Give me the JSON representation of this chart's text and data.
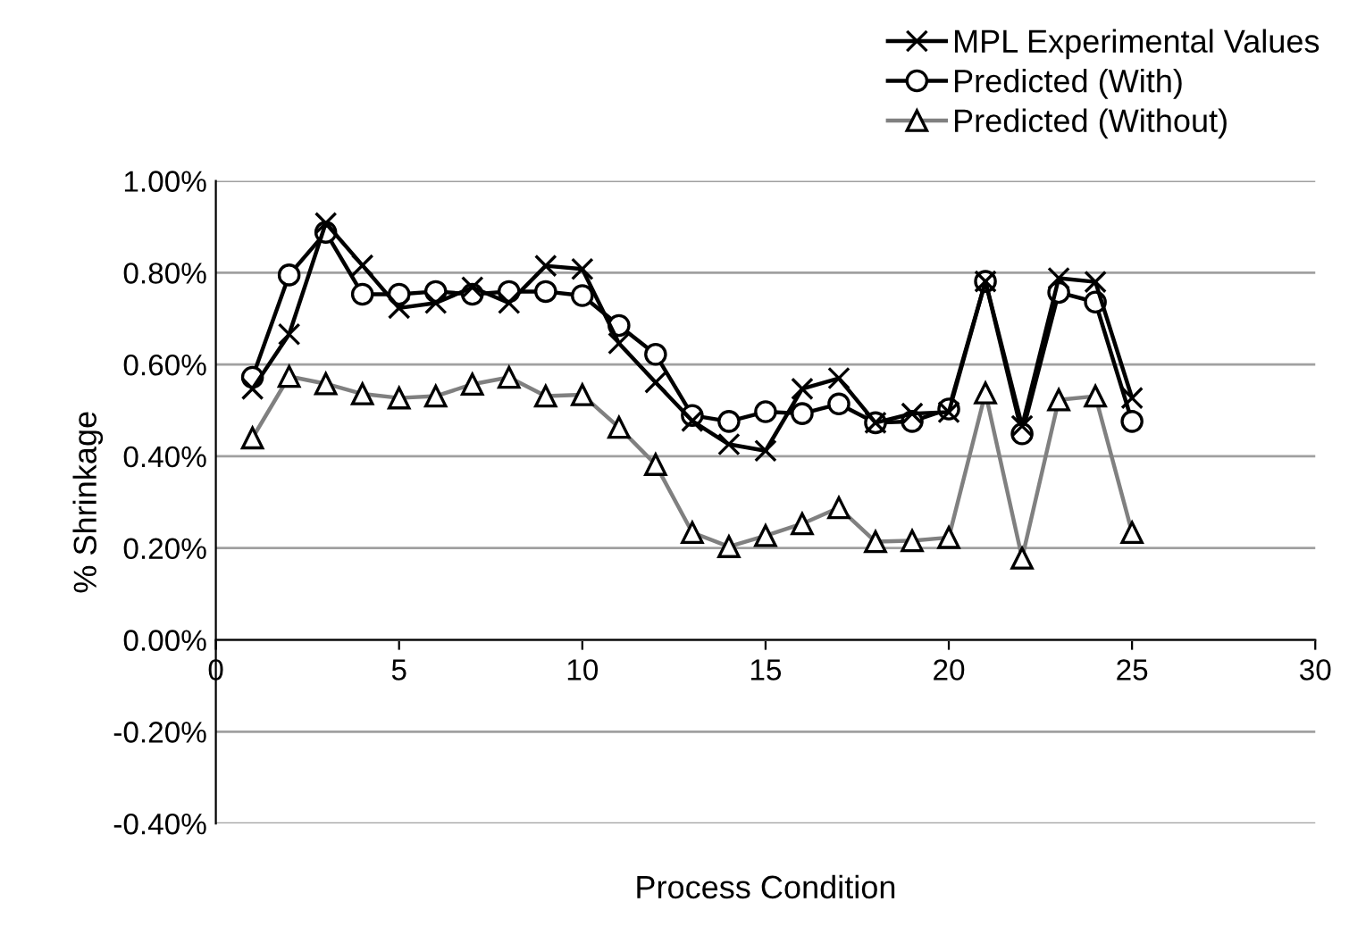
{
  "chart_data": {
    "type": "line",
    "xlabel": "Process Condition",
    "ylabel": "% Shrinkage",
    "x": [
      1,
      2,
      3,
      4,
      5,
      6,
      7,
      8,
      9,
      10,
      11,
      12,
      13,
      14,
      15,
      16,
      17,
      18,
      19,
      20,
      21,
      22,
      23,
      24,
      25
    ],
    "series": [
      {
        "name": "MPL Experimental Values",
        "color": "#000000",
        "marker": "cross",
        "values": [
          0.547,
          0.666,
          0.908,
          0.816,
          0.723,
          0.734,
          0.768,
          0.734,
          0.815,
          0.808,
          0.646,
          0.561,
          0.477,
          0.426,
          0.412,
          0.547,
          0.57,
          0.473,
          0.493,
          0.496,
          0.781,
          0.466,
          0.788,
          0.78,
          0.527
        ]
      },
      {
        "name": "Predicted (With)",
        "color": "#000000",
        "marker": "circle",
        "values": [
          0.572,
          0.795,
          0.888,
          0.753,
          0.753,
          0.759,
          0.753,
          0.759,
          0.759,
          0.75,
          0.685,
          0.622,
          0.489,
          0.476,
          0.497,
          0.493,
          0.514,
          0.473,
          0.476,
          0.503,
          0.781,
          0.449,
          0.757,
          0.736,
          0.476
        ]
      },
      {
        "name": "Predicted (Without)",
        "color": "#808080",
        "marker": "triangle",
        "values": [
          0.44,
          0.574,
          0.558,
          0.536,
          0.527,
          0.531,
          0.557,
          0.572,
          0.531,
          0.534,
          0.463,
          0.382,
          0.234,
          0.203,
          0.227,
          0.253,
          0.288,
          0.214,
          0.216,
          0.223,
          0.538,
          0.178,
          0.523,
          0.531,
          0.234
        ]
      }
    ],
    "xlim": [
      0,
      30
    ],
    "xticks": [
      0,
      5,
      10,
      15,
      20,
      25,
      30
    ],
    "ylim": [
      -0.4,
      1.0
    ],
    "yticks": [
      {
        "value": -0.4,
        "label": "-0.40%"
      },
      {
        "value": -0.2,
        "label": "-0.20%"
      },
      {
        "value": 0,
        "label": "0.00%"
      },
      {
        "value": 0.2,
        "label": "0.20%"
      },
      {
        "value": 0.4,
        "label": "0.40%"
      },
      {
        "value": 0.6,
        "label": "0.60%"
      },
      {
        "value": 0.8,
        "label": "0.80%"
      },
      {
        "value": 1.0,
        "label": "1.00%"
      }
    ],
    "grid": "y",
    "legend": "top right",
    "line_style": "solid"
  }
}
